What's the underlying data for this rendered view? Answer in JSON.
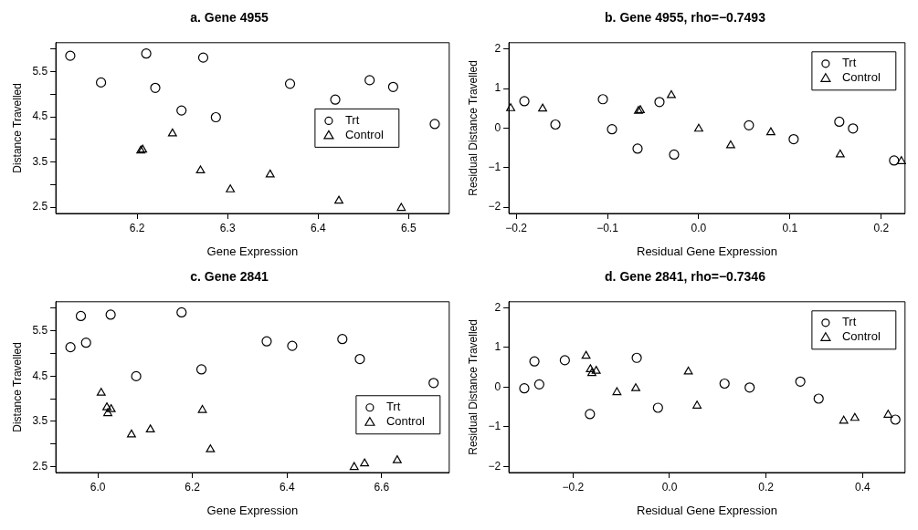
{
  "chart_data": [
    {
      "type": "scatter",
      "title": "a. Gene 4955",
      "xlabel": "Gene Expression",
      "ylabel": "Distance Travelled",
      "xlim": [
        6.11,
        6.545
      ],
      "ylim": [
        2.36,
        6.14
      ],
      "xticks": [
        6.2,
        6.3,
        6.4,
        6.5
      ],
      "yticks": [
        2.5,
        {
          "value": 3,
          "label": null
        },
        3.5,
        {
          "value": 4,
          "label": null
        },
        4.5,
        {
          "value": 5,
          "label": null
        },
        5.5,
        {
          "value": 6,
          "label": null
        }
      ],
      "grid": false,
      "legend": "right",
      "series": [
        {
          "name": "Trt",
          "color": "#000000",
          "marker": "circle",
          "x": [
            6.126,
            6.21,
            6.273,
            6.16,
            6.22,
            6.369,
            6.457,
            6.483,
            6.419,
            6.249,
            6.287,
            6.529
          ],
          "values": [
            5.85,
            5.9,
            5.81,
            5.26,
            5.14,
            5.23,
            5.31,
            5.16,
            4.88,
            4.64,
            4.49,
            4.34
          ]
        },
        {
          "name": "Control",
          "color": "#000000",
          "marker": "triangle",
          "x": [
            6.239,
            6.204,
            6.206,
            6.27,
            6.347,
            6.303,
            6.423,
            6.492
          ],
          "values": [
            4.13,
            3.75,
            3.77,
            3.31,
            3.22,
            2.89,
            2.64,
            2.48
          ]
        }
      ]
    },
    {
      "type": "scatter",
      "title": "b. Gene 4955, rho=−0.7493",
      "xlabel": "Residual Gene Expression",
      "ylabel": "Residual Distance Travelled",
      "xlim": [
        -0.208,
        0.226
      ],
      "ylim": [
        -2.16,
        2.16
      ],
      "xticks": [
        {
          "value": -0.2,
          "label": "−0.2"
        },
        {
          "value": -0.1,
          "label": "−0.1"
        },
        {
          "value": 0,
          "label": "0.0"
        },
        0.1,
        0.2
      ],
      "yticks": [
        {
          "value": -2,
          "label": "−2"
        },
        {
          "value": -1,
          "label": "−1"
        },
        0,
        1,
        2
      ],
      "grid": false,
      "legend": "top right",
      "series": [
        {
          "name": "Trt",
          "color": "#000000",
          "marker": "circle",
          "x": [
            -0.191,
            -0.157,
            -0.105,
            -0.095,
            -0.067,
            -0.043,
            -0.027,
            0.055,
            0.104,
            0.154,
            0.169,
            0.214
          ],
          "values": [
            0.68,
            0.09,
            0.73,
            -0.03,
            -0.52,
            0.66,
            -0.67,
            0.07,
            -0.28,
            0.16,
            -0.01,
            -0.82
          ]
        },
        {
          "name": "Control",
          "color": "#000000",
          "marker": "triangle",
          "x": [
            -0.206,
            -0.171,
            -0.066,
            -0.064,
            -0.03,
            0,
            0.035,
            0.079,
            0.155,
            0.222
          ],
          "values": [
            0.5,
            0.49,
            0.43,
            0.45,
            0.83,
            -0.02,
            -0.44,
            -0.11,
            -0.67,
            -0.84
          ]
        }
      ]
    },
    {
      "type": "scatter",
      "title": "c. Gene 2841",
      "xlabel": "Gene Expression",
      "ylabel": "Distance Travelled",
      "xlim": [
        5.911,
        6.743
      ],
      "ylim": [
        2.37,
        6.145
      ],
      "xticks": [
        {
          "value": 6,
          "label": "6.0"
        },
        6.2,
        6.4,
        6.6
      ],
      "yticks": [
        2.5,
        {
          "value": 3,
          "label": null
        },
        3.5,
        {
          "value": 4,
          "label": null
        },
        4.5,
        {
          "value": 5,
          "label": null
        },
        5.5,
        {
          "value": 6,
          "label": null
        }
      ],
      "grid": false,
      "legend": "bottom right",
      "series": [
        {
          "name": "Trt",
          "color": "#000000",
          "marker": "circle",
          "x": [
            5.942,
            5.964,
            5.975,
            6.027,
            6.177,
            6.081,
            6.219,
            6.357,
            6.411,
            6.517,
            6.554,
            6.71
          ],
          "values": [
            5.14,
            5.83,
            5.24,
            5.86,
            5.91,
            4.5,
            4.65,
            5.27,
            5.17,
            5.32,
            4.88,
            4.35
          ]
        },
        {
          "name": "Control",
          "color": "#000000",
          "marker": "triangle",
          "x": [
            6.007,
            6.019,
            6.028,
            6.021,
            6.071,
            6.111,
            6.221,
            6.238,
            6.542,
            6.564,
            6.633
          ],
          "values": [
            4.13,
            3.81,
            3.77,
            3.68,
            3.21,
            3.32,
            3.75,
            2.88,
            2.49,
            2.57,
            2.64
          ]
        }
      ]
    },
    {
      "type": "scatter",
      "title": "d. Gene 2841, rho=−0.7346",
      "xlabel": "Residual Gene Expression",
      "ylabel": "Residual Distance Travelled",
      "xlim": [
        -0.333,
        0.488
      ],
      "ylim": [
        -2.156,
        2.156
      ],
      "xticks": [
        {
          "value": -0.2,
          "label": "−0.2"
        },
        {
          "value": 0,
          "label": "0.0"
        },
        0.2,
        0.4
      ],
      "yticks": [
        {
          "value": -2,
          "label": "−2"
        },
        {
          "value": -1,
          "label": "−1"
        },
        0,
        1,
        2
      ],
      "grid": false,
      "legend": "top right",
      "series": [
        {
          "name": "Trt",
          "color": "#000000",
          "marker": "circle",
          "x": [
            -0.301,
            -0.28,
            -0.27,
            -0.217,
            -0.165,
            -0.068,
            -0.024,
            0.114,
            0.166,
            0.271,
            0.309,
            0.468
          ],
          "values": [
            -0.03,
            0.65,
            0.07,
            0.68,
            -0.68,
            0.74,
            -0.52,
            0.09,
            -0.01,
            0.14,
            -0.29,
            -0.82
          ]
        },
        {
          "name": "Control",
          "color": "#000000",
          "marker": "triangle",
          "x": [
            -0.173,
            -0.164,
            -0.152,
            -0.161,
            -0.109,
            -0.07,
            0.039,
            0.057,
            0.361,
            0.384,
            0.453
          ],
          "values": [
            0.79,
            0.45,
            0.41,
            0.35,
            -0.13,
            -0.03,
            0.39,
            -0.47,
            -0.85,
            -0.78,
            -0.7
          ]
        }
      ]
    }
  ]
}
